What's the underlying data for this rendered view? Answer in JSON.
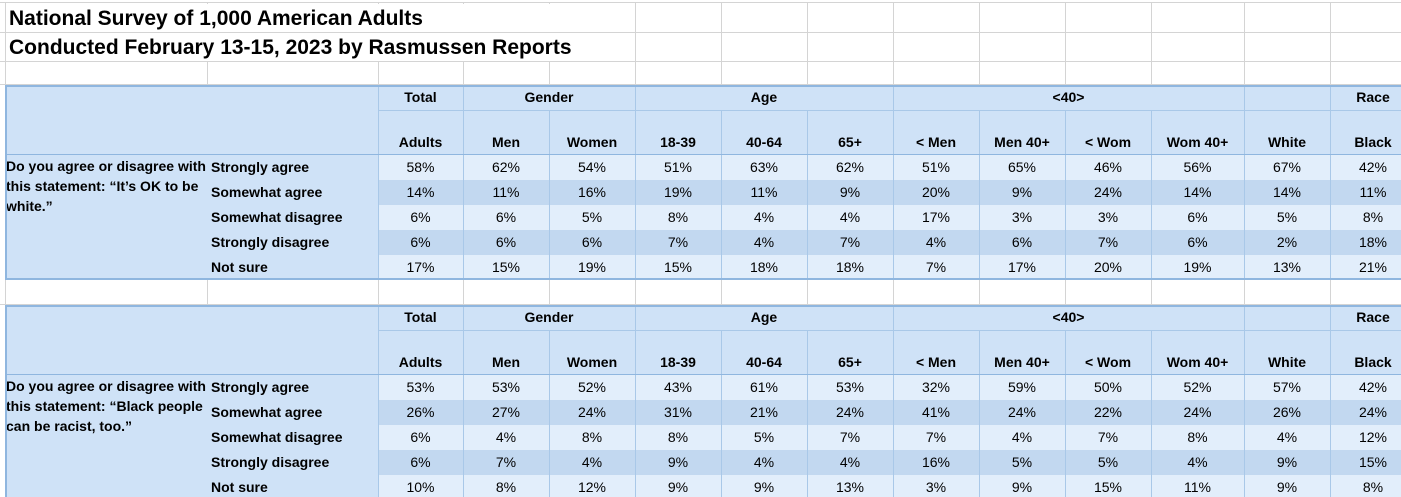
{
  "title_lines": [
    "National Survey of 1,000 American Adults",
    "Conducted February 13-15, 2023 by Rasmussen Reports"
  ],
  "tables": [
    {
      "header_groups": [
        "Total",
        "Gender",
        "Age",
        "<40>",
        "Race"
      ],
      "columns": [
        "Adults",
        "Men",
        "Women",
        "18-39",
        "40-64",
        "65+",
        "< Men",
        "Men 40+",
        "< Wom",
        "Wom 40+",
        "White",
        "Black"
      ],
      "question": "Do you agree or disagree with this statement: “It’s OK to be white.”",
      "rows": [
        {
          "label": "Strongly agree",
          "values": [
            "58%",
            "62%",
            "54%",
            "51%",
            "63%",
            "62%",
            "51%",
            "65%",
            "46%",
            "56%",
            "67%",
            "42%"
          ]
        },
        {
          "label": "Somewhat agree",
          "values": [
            "14%",
            "11%",
            "16%",
            "19%",
            "11%",
            "9%",
            "20%",
            "9%",
            "24%",
            "14%",
            "14%",
            "11%"
          ]
        },
        {
          "label": "Somewhat disagree",
          "values": [
            "6%",
            "6%",
            "5%",
            "8%",
            "4%",
            "4%",
            "17%",
            "3%",
            "3%",
            "6%",
            "5%",
            "8%"
          ]
        },
        {
          "label": "Strongly disagree",
          "values": [
            "6%",
            "6%",
            "6%",
            "7%",
            "4%",
            "7%",
            "4%",
            "6%",
            "7%",
            "6%",
            "2%",
            "18%"
          ]
        },
        {
          "label": "Not sure",
          "values": [
            "17%",
            "15%",
            "19%",
            "15%",
            "18%",
            "18%",
            "7%",
            "17%",
            "20%",
            "19%",
            "13%",
            "21%"
          ]
        }
      ]
    },
    {
      "header_groups": [
        "Total",
        "Gender",
        "Age",
        "<40>",
        "Race"
      ],
      "columns": [
        "Adults",
        "Men",
        "Women",
        "18-39",
        "40-64",
        "65+",
        "< Men",
        "Men 40+",
        "< Wom",
        "Wom 40+",
        "White",
        "Black"
      ],
      "question": "Do you agree or disagree with this statement: “Black people can be racist, too.”",
      "rows": [
        {
          "label": "Strongly agree",
          "values": [
            "53%",
            "53%",
            "52%",
            "43%",
            "61%",
            "53%",
            "32%",
            "59%",
            "50%",
            "52%",
            "57%",
            "42%"
          ]
        },
        {
          "label": "Somewhat agree",
          "values": [
            "26%",
            "27%",
            "24%",
            "31%",
            "21%",
            "24%",
            "41%",
            "24%",
            "22%",
            "24%",
            "26%",
            "24%"
          ]
        },
        {
          "label": "Somewhat disagree",
          "values": [
            "6%",
            "4%",
            "8%",
            "8%",
            "5%",
            "7%",
            "7%",
            "4%",
            "7%",
            "8%",
            "4%",
            "12%"
          ]
        },
        {
          "label": "Strongly disagree",
          "values": [
            "6%",
            "7%",
            "4%",
            "9%",
            "4%",
            "4%",
            "16%",
            "5%",
            "5%",
            "4%",
            "9%",
            "15%"
          ]
        },
        {
          "label": "Not sure",
          "values": [
            "10%",
            "8%",
            "12%",
            "9%",
            "9%",
            "13%",
            "3%",
            "9%",
            "15%",
            "11%",
            "9%",
            "8%"
          ]
        }
      ]
    }
  ]
}
